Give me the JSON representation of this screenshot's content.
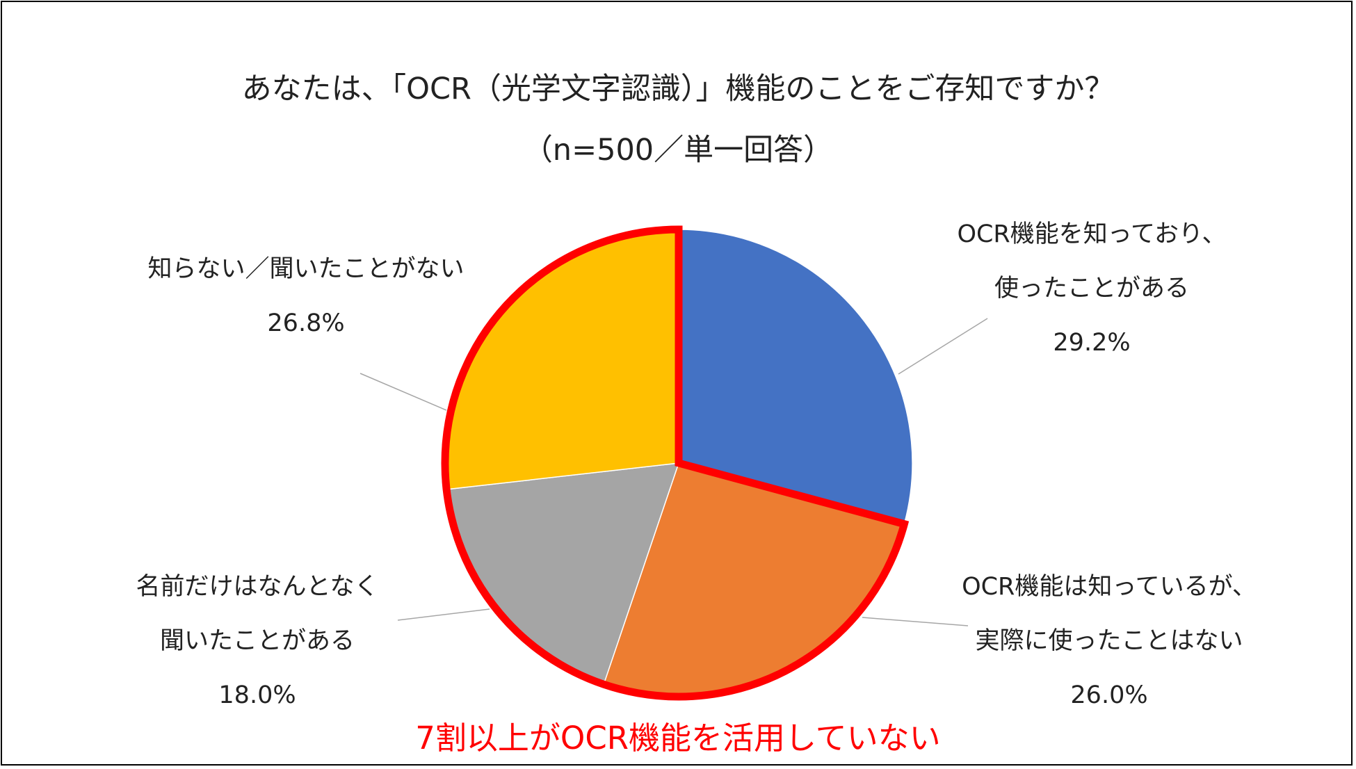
{
  "chart_data": {
    "type": "pie",
    "title": "あなたは、「OCR（光学文字認識）」機能のことをご存知ですか？",
    "subtitle": "（n=500／単一回答）",
    "slices": [
      {
        "label_lines": [
          "OCR機能を知っており、",
          "使ったことがある"
        ],
        "value": 29.2,
        "value_label": "29.2%",
        "color": "#4472C4"
      },
      {
        "label_lines": [
          "OCR機能は知っているが、",
          "実際に使ったことはない"
        ],
        "value": 26.0,
        "value_label": "26.0%",
        "color": "#ED7D31"
      },
      {
        "label_lines": [
          "名前だけはなんとなく",
          "聞いたことがある"
        ],
        "value": 18.0,
        "value_label": "18.0%",
        "color": "#A5A5A5"
      },
      {
        "label_lines": [
          "知らない／聞いたことがない"
        ],
        "value": 26.8,
        "value_label": "26.8%",
        "color": "#FFC000"
      }
    ],
    "highlight": {
      "text": "7割以上がOCR機能を活用していない",
      "color": "#FF0000"
    }
  }
}
